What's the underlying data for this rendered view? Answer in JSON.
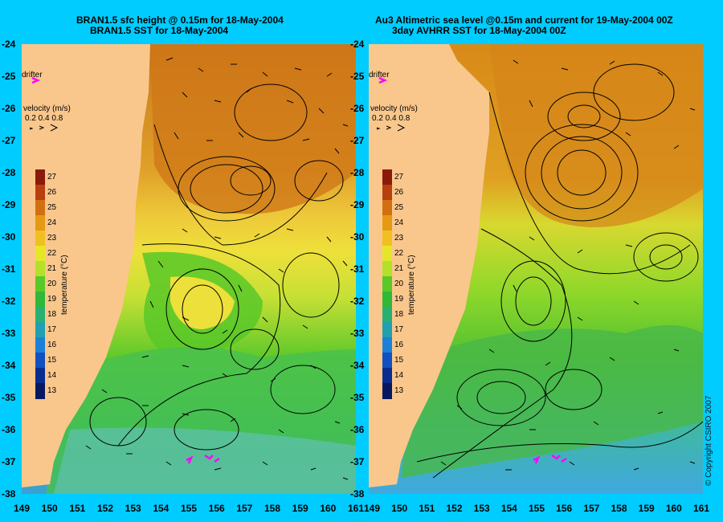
{
  "left_panel": {
    "title_line1": "BRAN1.5 sfc height @ 0.15m for 18-May-2004",
    "title_line2": "BRAN1.5 SST for 18-May-2004"
  },
  "right_panel": {
    "title_line1": "Au3 Altimetric sea level  @0.15m and current for 19-May-2004 00Z",
    "title_line2": "3day AVHRR SST for 18-May-2004 00Z"
  },
  "lat_ticks": [
    "-24",
    "-25",
    "-26",
    "-27",
    "-28",
    "-29",
    "-30",
    "-31",
    "-32",
    "-33",
    "-34",
    "-35",
    "-36",
    "-37",
    "-38"
  ],
  "lon_ticks": [
    "149",
    "150",
    "151",
    "152",
    "153",
    "154",
    "155",
    "156",
    "157",
    "158",
    "159",
    "160",
    "161"
  ],
  "legend": {
    "drifter_label": "drifter",
    "velocity_label": "velocity (m/s)",
    "velocity_values": "0.2 0.4 0.8"
  },
  "colorbar": {
    "title": "temperature (°C)",
    "labels": [
      "27",
      "26",
      "25",
      "24",
      "23",
      "22",
      "21",
      "20",
      "19",
      "18",
      "17",
      "16",
      "15",
      "14",
      "13"
    ],
    "colors": [
      "#8a1a0a",
      "#b8400e",
      "#d27010",
      "#e69a14",
      "#f0c020",
      "#e6e628",
      "#b4e02a",
      "#5ac828",
      "#30b838",
      "#28b070",
      "#20a0b0",
      "#1c80d8",
      "#1050c0",
      "#0a2c90",
      "#081860"
    ]
  },
  "copyright": "© Copyright CSIRO 2007",
  "colors": {
    "land": "#f9c78c",
    "background": "#00ccff",
    "drifter": "#ff00ff"
  }
}
